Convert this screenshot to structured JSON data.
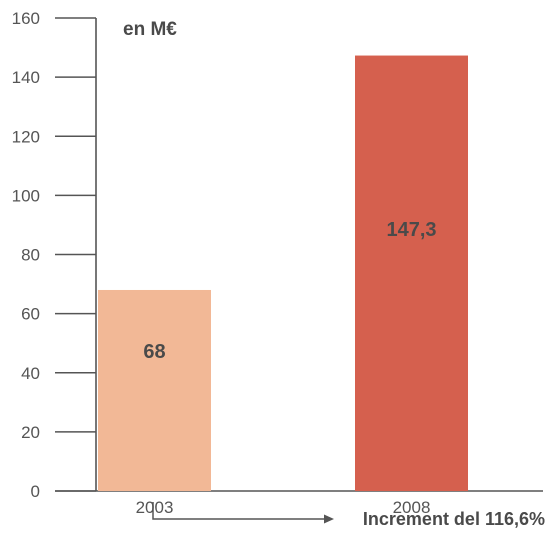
{
  "chart_data": {
    "type": "bar",
    "unit_label": "en M€",
    "categories": [
      "2003",
      "2008"
    ],
    "values": [
      68,
      147.3
    ],
    "value_labels": [
      "68",
      "147,3"
    ],
    "colors": [
      "#f2b896",
      "#d5604e"
    ],
    "ylim": [
      0,
      160
    ],
    "y_ticks": [
      0,
      20,
      40,
      60,
      80,
      100,
      120,
      140,
      160
    ],
    "grid": false,
    "annotation": "Increment del 116,6%"
  }
}
